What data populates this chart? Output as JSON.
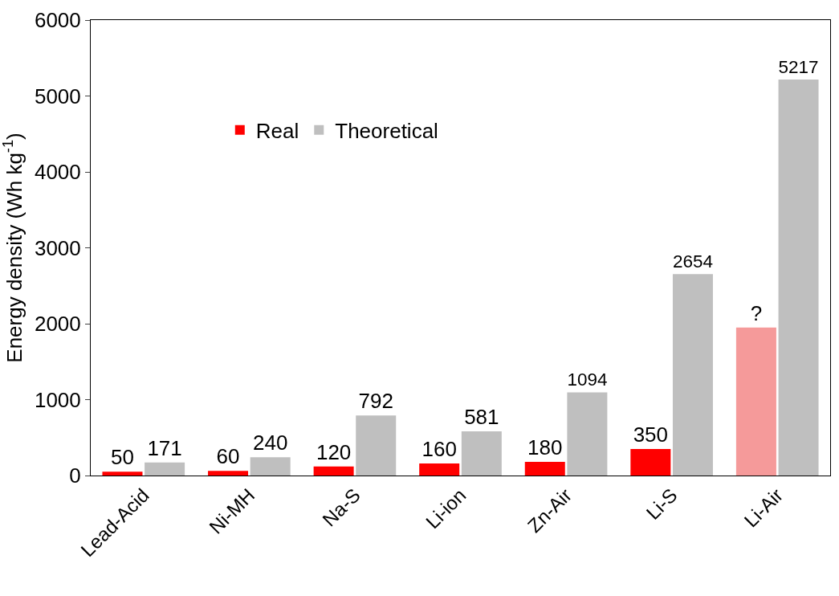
{
  "chart_data": {
    "type": "bar",
    "ylabel": "Energy density (Wh kg$^{-1}$)",
    "categories": [
      "Lead-Acid",
      "Ni-MH",
      "Na-S",
      "Li-ion",
      "Zn-Air",
      "Li-S",
      "Li-Air"
    ],
    "series": [
      {
        "name": "Real",
        "color": "#ff0000",
        "colors": [
          "#ff0000",
          "#ff0000",
          "#ff0000",
          "#ff0000",
          "#ff0000",
          "#ff0000",
          "#f59a9a"
        ],
        "values": [
          50,
          60,
          120,
          160,
          180,
          350,
          1950
        ],
        "value_labels": [
          "50",
          "60",
          "120",
          "160",
          "180",
          "350",
          "?"
        ]
      },
      {
        "name": "Theoretical",
        "color": "#bfbfbf",
        "values": [
          171,
          240,
          792,
          581,
          1094,
          2654,
          5217
        ],
        "value_labels": [
          "171",
          "240",
          "792",
          "581",
          "1094",
          "2654",
          "5217"
        ]
      }
    ],
    "ylim": [
      0,
      6000
    ],
    "yticks": [
      0,
      1000,
      2000,
      3000,
      4000,
      5000,
      6000
    ],
    "grid": false,
    "legend": "top left"
  }
}
